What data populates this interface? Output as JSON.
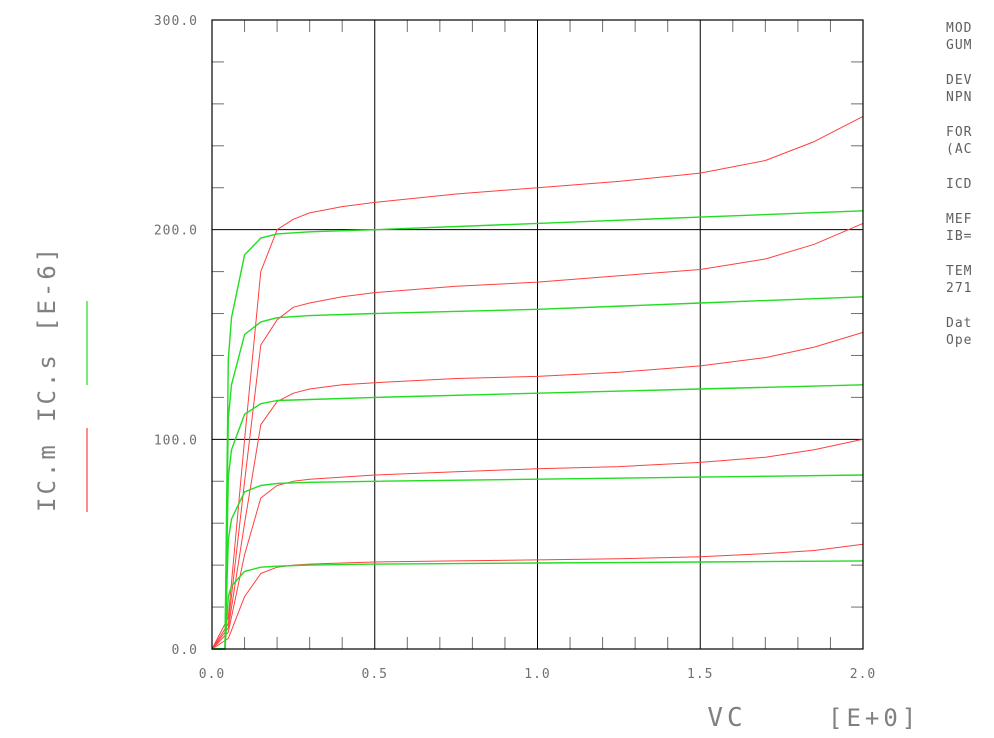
{
  "chart_data": {
    "type": "line",
    "title": "",
    "xlabel": "VC",
    "xlabel_exponent": "[E+0]",
    "ylabel_exponent": "[E-6]",
    "xlim": [
      0,
      2
    ],
    "ylim": [
      0,
      300
    ],
    "x_tick_labels": [
      "0.0",
      "0.5",
      "1.0",
      "1.5",
      "2.0"
    ],
    "y_tick_labels": [
      "0.0",
      "100.0",
      "200.0",
      "300.0"
    ],
    "series": [
      {
        "name": "IC.m",
        "color": "#ff4040",
        "curves": [
          {
            "x": [
              0,
              0.05,
              0.1,
              0.15,
              0.2,
              0.25,
              0.3,
              0.4,
              0.5,
              0.75,
              1.0,
              1.25,
              1.5,
              1.7,
              1.85,
              2.0
            ],
            "y": [
              0,
              5,
              25,
              36,
              39,
              40,
              40.5,
              41,
              41.5,
              42,
              42.5,
              43,
              44,
              45.5,
              47,
              50
            ]
          },
          {
            "x": [
              0,
              0.05,
              0.1,
              0.15,
              0.2,
              0.25,
              0.3,
              0.4,
              0.5,
              0.75,
              1.0,
              1.25,
              1.5,
              1.7,
              1.85,
              2.0
            ],
            "y": [
              0,
              8,
              45,
              72,
              78,
              80,
              81,
              82,
              83,
              84.5,
              86,
              87,
              89,
              91.5,
              95,
              100
            ]
          },
          {
            "x": [
              0,
              0.05,
              0.1,
              0.15,
              0.2,
              0.25,
              0.3,
              0.4,
              0.5,
              0.75,
              1.0,
              1.25,
              1.5,
              1.7,
              1.85,
              2.0
            ],
            "y": [
              0,
              10,
              60,
              107,
              118,
              122,
              124,
              126,
              127,
              129,
              130,
              132,
              135,
              139,
              144,
              151
            ]
          },
          {
            "x": [
              0,
              0.05,
              0.1,
              0.15,
              0.2,
              0.25,
              0.3,
              0.4,
              0.5,
              0.75,
              1.0,
              1.25,
              1.5,
              1.7,
              1.85,
              2.0
            ],
            "y": [
              0,
              12,
              80,
              145,
              157,
              163,
              165,
              168,
              170,
              173,
              175,
              178,
              181,
              186,
              193,
              203
            ]
          },
          {
            "x": [
              0,
              0.05,
              0.1,
              0.15,
              0.2,
              0.25,
              0.3,
              0.4,
              0.5,
              0.75,
              1.0,
              1.25,
              1.5,
              1.7,
              1.85,
              2.0
            ],
            "y": [
              0,
              15,
              100,
              180,
              200,
              205,
              208,
              211,
              213,
              217,
              220,
              223,
              227,
              233,
              242,
              254
            ]
          }
        ]
      },
      {
        "name": "IC.s",
        "color": "#22dd22",
        "curves": [
          {
            "x": [
              0,
              0.04,
              0.05,
              0.06,
              0.1,
              0.15,
              0.2,
              0.3,
              0.5,
              1.0,
              1.5,
              2.0
            ],
            "y": [
              0,
              0,
              25,
              30,
              37,
              39,
              39.5,
              40,
              40.5,
              41,
              41.5,
              42
            ]
          },
          {
            "x": [
              0,
              0.04,
              0.05,
              0.06,
              0.1,
              0.15,
              0.2,
              0.3,
              0.5,
              1.0,
              1.5,
              2.0
            ],
            "y": [
              0,
              0,
              52,
              62,
              75,
              78,
              79,
              79.5,
              80,
              81,
              82,
              83
            ]
          },
          {
            "x": [
              0,
              0.04,
              0.05,
              0.06,
              0.1,
              0.15,
              0.2,
              0.3,
              0.5,
              1.0,
              1.5,
              2.0
            ],
            "y": [
              0,
              0,
              82,
              95,
              112,
              117,
              118.5,
              119,
              120,
              122,
              124,
              126
            ]
          },
          {
            "x": [
              0,
              0.04,
              0.05,
              0.06,
              0.1,
              0.15,
              0.2,
              0.3,
              0.5,
              1.0,
              1.5,
              2.0
            ],
            "y": [
              0,
              0,
              110,
              126,
              150,
              156,
              158,
              159,
              160,
              162,
              165,
              168
            ]
          },
          {
            "x": [
              0,
              0.04,
              0.05,
              0.06,
              0.1,
              0.15,
              0.2,
              0.3,
              0.5,
              1.0,
              1.5,
              2.0
            ],
            "y": [
              0,
              0,
              138,
              158,
              188,
              196,
              198,
              199,
              200,
              203,
              206,
              209
            ]
          }
        ]
      }
    ],
    "grid": "major lines at x=0.5,1.0,1.5 and y=100,200"
  },
  "info_panel": {
    "blocks": [
      [
        "MOD",
        "GUM"
      ],
      [
        "DEV",
        "NPN"
      ],
      [
        "FOR",
        "(AC"
      ],
      [
        "ICD"
      ],
      [
        "MEF",
        "IB="
      ],
      [
        "TEM",
        "271"
      ],
      [
        "Dat",
        "Ope"
      ]
    ]
  }
}
